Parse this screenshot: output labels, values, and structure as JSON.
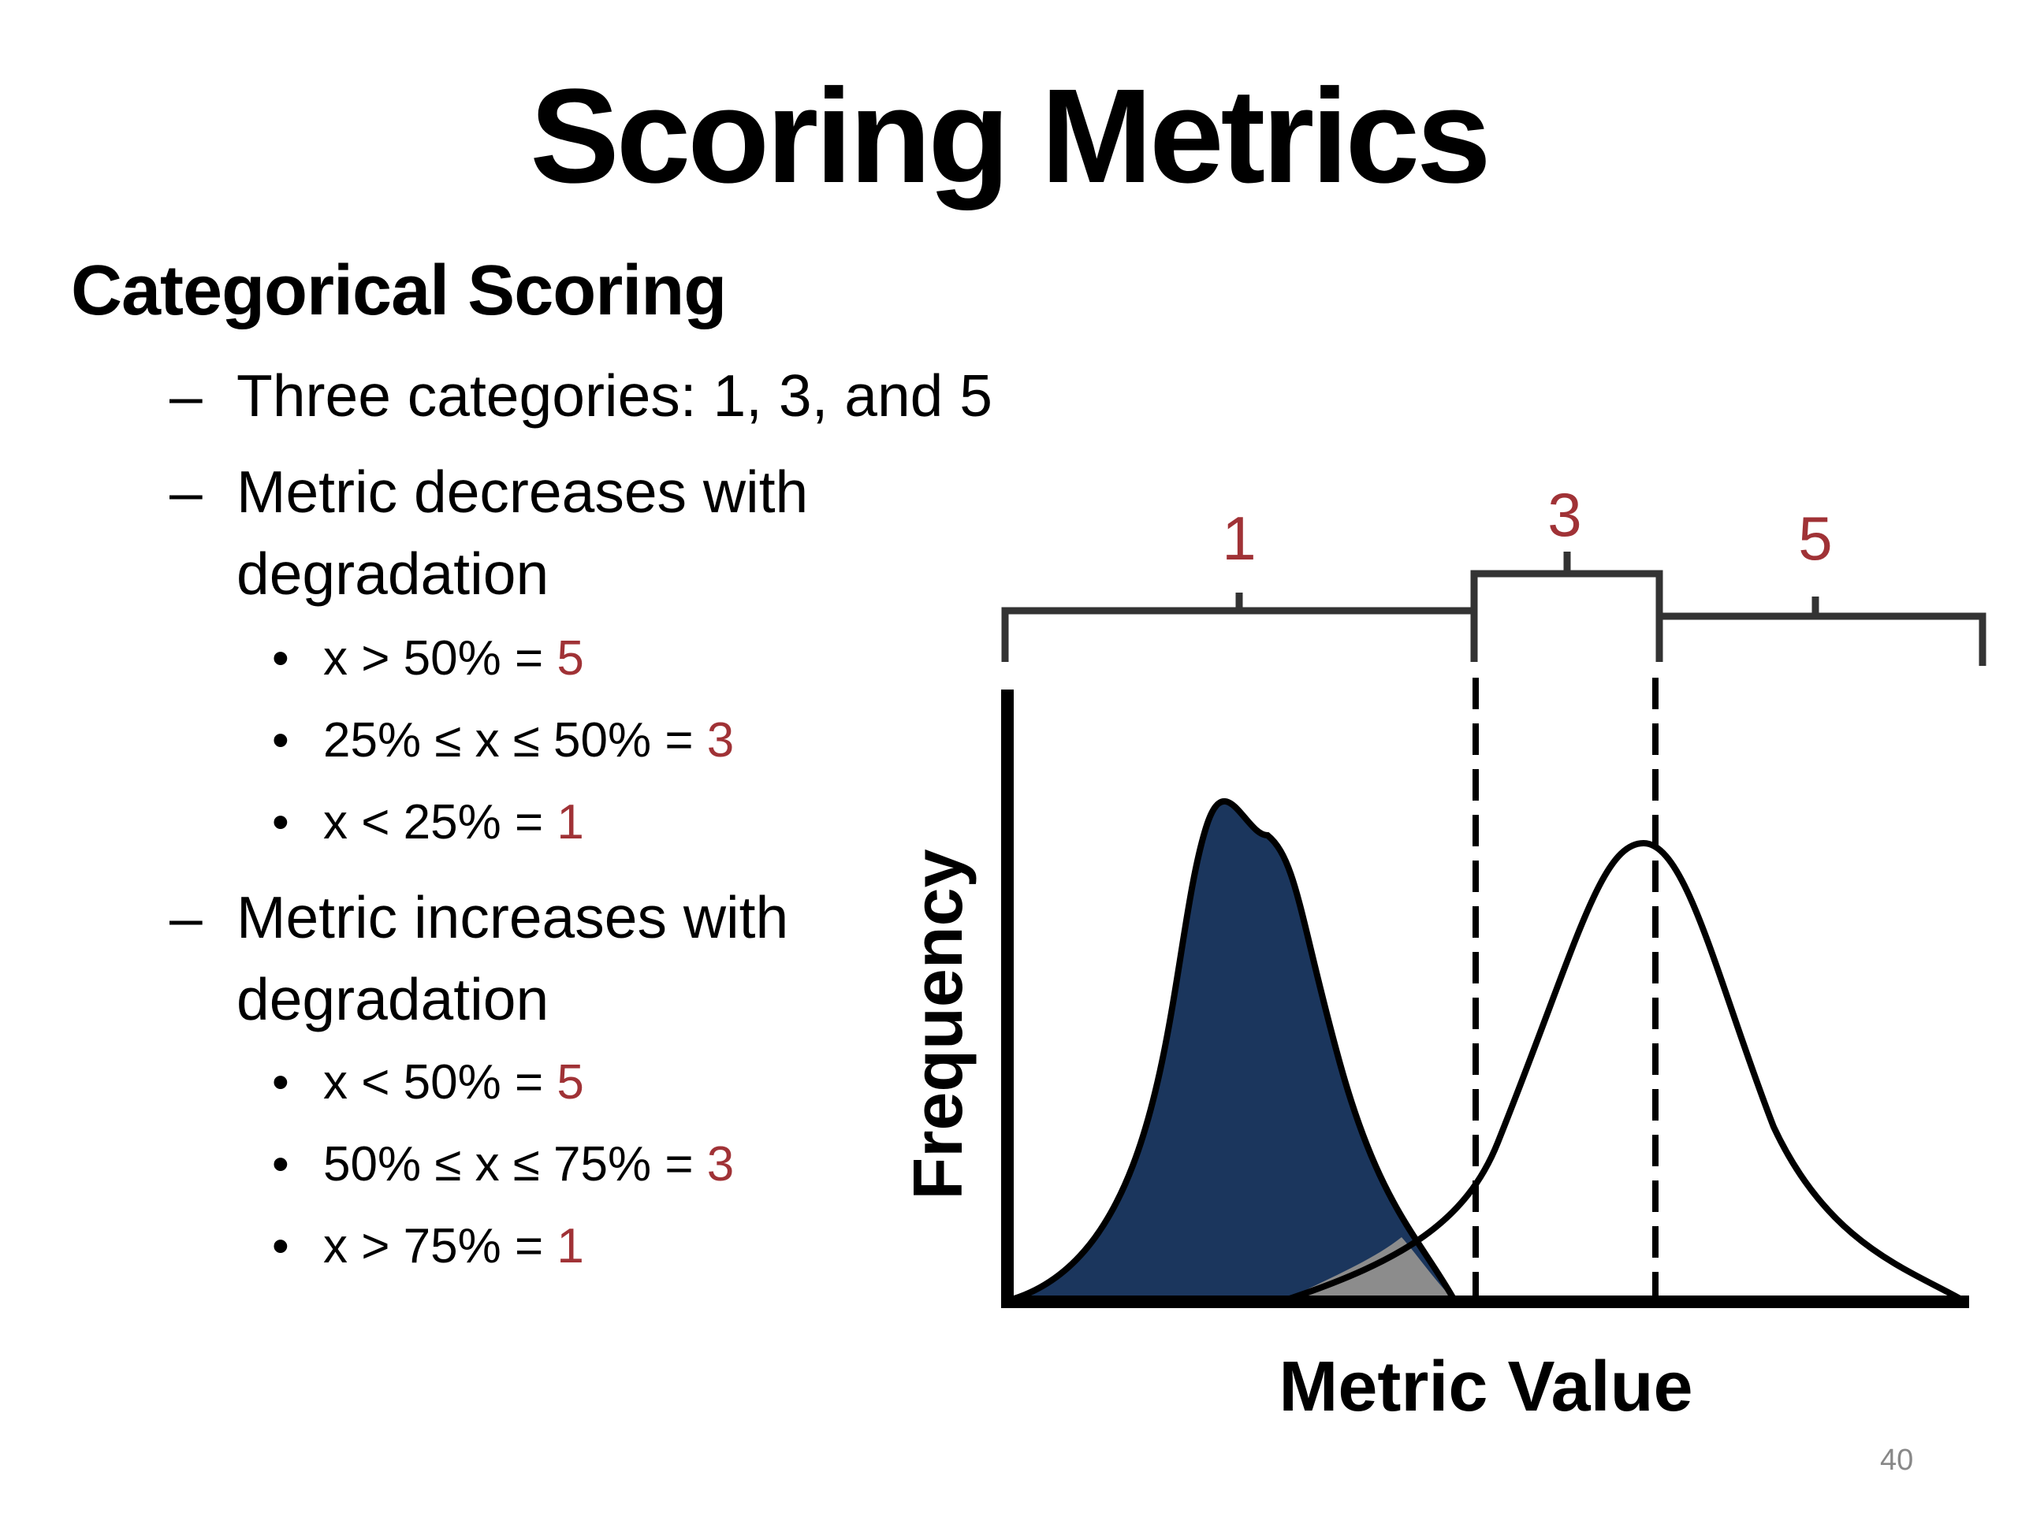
{
  "slide": {
    "title": "Scoring Metrics",
    "heading": "Categorical Scoring",
    "page_number": "40",
    "score_color": "#a03236",
    "points": [
      {
        "dash": "–",
        "lines": [
          "Three categories: 1, 3, and 5"
        ]
      },
      {
        "dash": "–",
        "lines": [
          "Metric decreases with",
          "degradation"
        ],
        "bullets": [
          {
            "marker": "•",
            "text": "x > 50% = ",
            "score": "5"
          },
          {
            "marker": "•",
            "text": "25% ≤ x ≤ 50% = ",
            "score": "3"
          },
          {
            "marker": "•",
            "text": "x < 25% = ",
            "score": "1"
          }
        ]
      },
      {
        "dash": "–",
        "lines": [
          "Metric increases with",
          "degradation"
        ],
        "bullets": [
          {
            "marker": "•",
            "text": "x < 50% = ",
            "score": "5"
          },
          {
            "marker": "•",
            "text": "50% ≤ x ≤ 75% = ",
            "score": "3"
          },
          {
            "marker": "•",
            "text": "x > 75% = ",
            "score": "1"
          }
        ]
      }
    ]
  },
  "diagram": {
    "y_axis_label": "Frequency",
    "x_axis_label": "Metric Value",
    "category_labels": [
      "1",
      "3",
      "5"
    ],
    "colors": {
      "filled_curve": "#1b365d",
      "overlap": "#8c8c8c",
      "category_label": "#a03236",
      "lines": "#000000"
    }
  }
}
